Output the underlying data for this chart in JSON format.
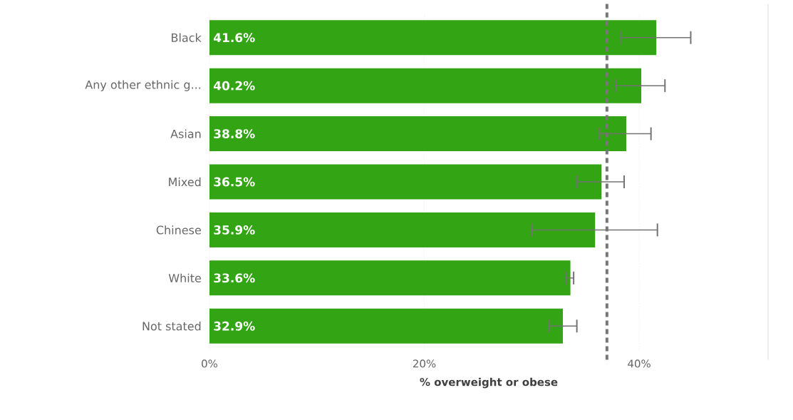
{
  "chart_data": {
    "type": "bar",
    "orientation": "horizontal",
    "xlabel": "% overweight or obese",
    "categories": [
      "Black",
      "Any other ethnic g...",
      "Asian",
      "Mixed",
      "Chinese",
      "White",
      "Not stated"
    ],
    "values": [
      41.6,
      40.2,
      38.8,
      36.5,
      35.9,
      33.6,
      32.9
    ],
    "value_labels": [
      "41.6%",
      "40.2%",
      "38.8%",
      "36.5%",
      "35.9%",
      "33.6%",
      "32.9%"
    ],
    "errors": [
      [
        38.3,
        44.8
      ],
      [
        37.8,
        42.4
      ],
      [
        36.3,
        41.1
      ],
      [
        34.2,
        38.6
      ],
      [
        30.0,
        41.7
      ],
      [
        33.2,
        33.9
      ],
      [
        31.6,
        34.2
      ]
    ],
    "color": "#33a414",
    "xlim": [
      0,
      52
    ],
    "xticks": [
      {
        "value": 0,
        "label": "0%"
      },
      {
        "value": 20,
        "label": "20%"
      },
      {
        "value": 40,
        "label": "40%"
      }
    ],
    "grid": "x",
    "ref_lines": [
      {
        "axis": "x",
        "value": 37.0,
        "color": "#777777",
        "line_style": "dashed"
      }
    ]
  }
}
